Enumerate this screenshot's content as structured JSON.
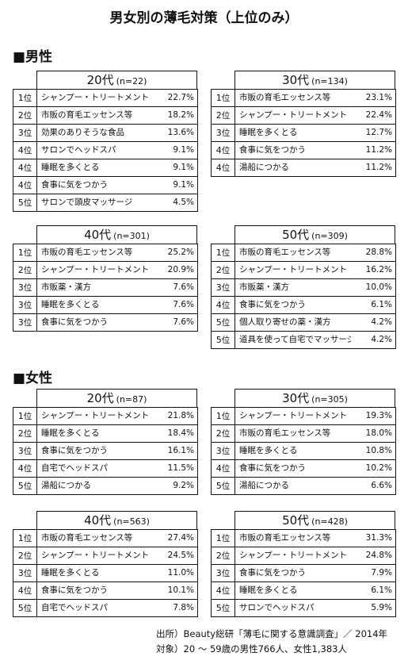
{
  "title": "男女別の薄毛対策（上位のみ）",
  "male": {
    "heading": "■男性",
    "t20": {
      "age": "20代",
      "n": "(n=22)",
      "rows": [
        {
          "rank": "1",
          "unit": "位",
          "item": "シャンプー・トリートメント",
          "pct": "22.7%"
        },
        {
          "rank": "2",
          "unit": "位",
          "item": "市販の育毛エッセンス等",
          "pct": "18.2%"
        },
        {
          "rank": "3",
          "unit": "位",
          "item": "効果のありそうな食品",
          "pct": "13.6%"
        },
        {
          "rank": "4",
          "unit": "位",
          "item": "サロンでヘッドスパ",
          "pct": "9.1%"
        },
        {
          "rank": "4",
          "unit": "位",
          "item": "睡眠を多くとる",
          "pct": "9.1%"
        },
        {
          "rank": "4",
          "unit": "位",
          "item": "食事に気をつかう",
          "pct": "9.1%"
        },
        {
          "rank": "5",
          "unit": "位",
          "item": "サロンで頭皮マッサージ",
          "pct": "4.5%"
        }
      ]
    },
    "t30": {
      "age": "30代",
      "n": "(n=134)",
      "rows": [
        {
          "rank": "1",
          "unit": "位",
          "item": "市販の育毛エッセンス等",
          "pct": "23.1%"
        },
        {
          "rank": "2",
          "unit": "位",
          "item": "シャンプー・トリートメント",
          "pct": "22.4%"
        },
        {
          "rank": "3",
          "unit": "位",
          "item": "睡眠を多くとる",
          "pct": "12.7%"
        },
        {
          "rank": "4",
          "unit": "位",
          "item": "食事に気をつかう",
          "pct": "11.2%"
        },
        {
          "rank": "4",
          "unit": "位",
          "item": "湯船につかる",
          "pct": "11.2%"
        }
      ]
    },
    "t40": {
      "age": "40代",
      "n": "(n=301)",
      "rows": [
        {
          "rank": "1",
          "unit": "位",
          "item": "市販の育毛エッセンス等",
          "pct": "25.2%"
        },
        {
          "rank": "2",
          "unit": "位",
          "item": "シャンプー・トリートメント",
          "pct": "20.9%"
        },
        {
          "rank": "3",
          "unit": "位",
          "item": "市販薬・漢方",
          "pct": "7.6%"
        },
        {
          "rank": "3",
          "unit": "位",
          "item": "睡眠を多くとる",
          "pct": "7.6%"
        },
        {
          "rank": "3",
          "unit": "位",
          "item": "食事に気をつかう",
          "pct": "7.6%"
        }
      ]
    },
    "t50": {
      "age": "50代",
      "n": "(n=309)",
      "rows": [
        {
          "rank": "1",
          "unit": "位",
          "item": "市販の育毛エッセンス等",
          "pct": "28.8%"
        },
        {
          "rank": "2",
          "unit": "位",
          "item": "シャンプー・トリートメント",
          "pct": "16.2%"
        },
        {
          "rank": "3",
          "unit": "位",
          "item": "市販薬・漢方",
          "pct": "10.0%"
        },
        {
          "rank": "4",
          "unit": "位",
          "item": "食事に気をつかう",
          "pct": "6.1%"
        },
        {
          "rank": "5",
          "unit": "位",
          "item": "個人取り寄せの薬・漢方",
          "pct": "4.2%"
        },
        {
          "rank": "5",
          "unit": "位",
          "item": "道具を使って自宅でマッサージ",
          "pct": "4.2%"
        }
      ]
    }
  },
  "female": {
    "heading": "■女性",
    "t20": {
      "age": "20代",
      "n": "(n=87)",
      "rows": [
        {
          "rank": "1",
          "unit": "位",
          "item": "シャンプー・トリートメント",
          "pct": "21.8%"
        },
        {
          "rank": "2",
          "unit": "位",
          "item": "睡眠を多くとる",
          "pct": "18.4%"
        },
        {
          "rank": "3",
          "unit": "位",
          "item": "食事に気をつかう",
          "pct": "16.1%"
        },
        {
          "rank": "4",
          "unit": "位",
          "item": "自宅でヘッドスパ",
          "pct": "11.5%"
        },
        {
          "rank": "5",
          "unit": "位",
          "item": "湯船につかる",
          "pct": "9.2%"
        }
      ]
    },
    "t30": {
      "age": "30代",
      "n": "(n=305)",
      "rows": [
        {
          "rank": "1",
          "unit": "位",
          "item": "シャンプー・トリートメント",
          "pct": "19.3%"
        },
        {
          "rank": "2",
          "unit": "位",
          "item": "市販の育毛エッセンス等",
          "pct": "18.0%"
        },
        {
          "rank": "3",
          "unit": "位",
          "item": "睡眠を多くとる",
          "pct": "10.8%"
        },
        {
          "rank": "4",
          "unit": "位",
          "item": "食事に気をつかう",
          "pct": "10.2%"
        },
        {
          "rank": "5",
          "unit": "位",
          "item": "湯船につかる",
          "pct": "6.6%"
        }
      ]
    },
    "t40": {
      "age": "40代",
      "n": "(n=563)",
      "rows": [
        {
          "rank": "1",
          "unit": "位",
          "item": "市販の育毛エッセンス等",
          "pct": "27.4%"
        },
        {
          "rank": "2",
          "unit": "位",
          "item": "シャンプー・トリートメント",
          "pct": "24.5%"
        },
        {
          "rank": "3",
          "unit": "位",
          "item": "睡眠を多くとる",
          "pct": "11.0%"
        },
        {
          "rank": "4",
          "unit": "位",
          "item": "食事に気をつかう",
          "pct": "10.1%"
        },
        {
          "rank": "5",
          "unit": "位",
          "item": "自宅でヘッドスパ",
          "pct": "7.8%"
        }
      ]
    },
    "t50": {
      "age": "50代",
      "n": "(n=428)",
      "rows": [
        {
          "rank": "1",
          "unit": "位",
          "item": "市販の育毛エッセンス等",
          "pct": "31.3%"
        },
        {
          "rank": "2",
          "unit": "位",
          "item": "シャンプー・トリートメント",
          "pct": "24.8%"
        },
        {
          "rank": "3",
          "unit": "位",
          "item": "食事に気をつかう",
          "pct": "7.9%"
        },
        {
          "rank": "4",
          "unit": "位",
          "item": "睡眠を多くとる",
          "pct": "6.1%"
        },
        {
          "rank": "5",
          "unit": "位",
          "item": "サロンでヘッドスパ",
          "pct": "5.9%"
        }
      ]
    }
  },
  "source": {
    "line1": "出所）Beauty総研「薄毛に関する意識調査」／ 2014年",
    "line2": "対象）20 ～ 59歳の男性766人、女性1,383人"
  }
}
